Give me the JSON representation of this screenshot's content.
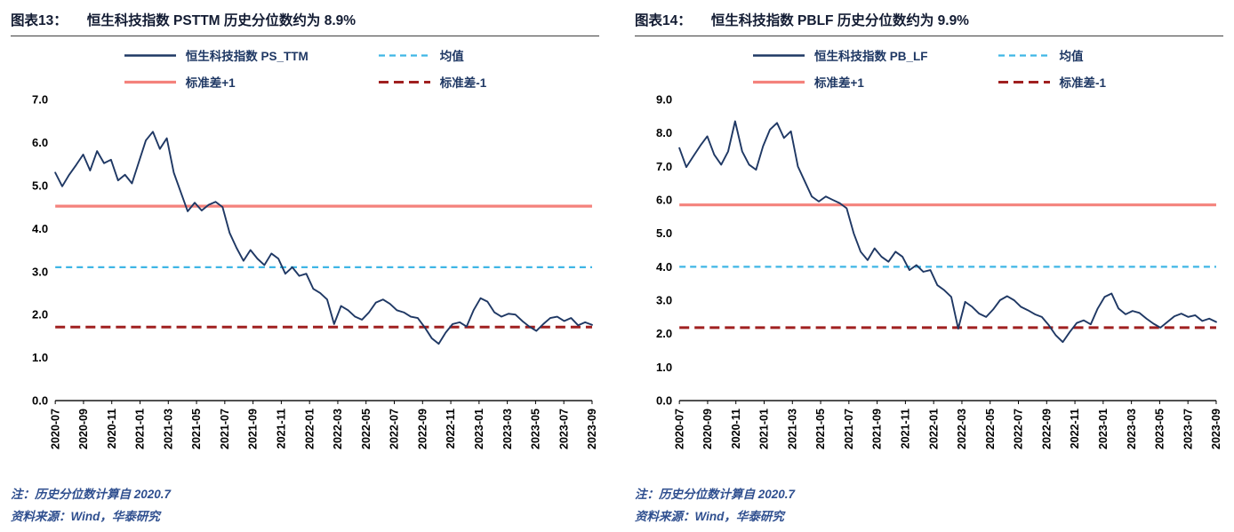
{
  "chart_data": [
    {
      "type": "line",
      "figure_label": "图表13：",
      "title": "恒生科技指数 PSTTM 历史分位数约为 8.9%",
      "ylim": [
        0,
        7
      ],
      "ystep": 1,
      "x_ticks": [
        "2020-07",
        "2020-09",
        "2020-11",
        "2021-01",
        "2021-03",
        "2021-05",
        "2021-07",
        "2021-09",
        "2021-11",
        "2022-01",
        "2022-03",
        "2022-05",
        "2022-07",
        "2022-09",
        "2022-11",
        "2023-01",
        "2023-03",
        "2023-05",
        "2023-07",
        "2023-09"
      ],
      "series": {
        "name": "恒生科技指数 PS_TTM",
        "color": "#1F3864",
        "values": [
          5.3,
          4.98,
          5.25,
          5.48,
          5.72,
          5.35,
          5.8,
          5.52,
          5.6,
          5.12,
          5.25,
          5.05,
          5.55,
          6.05,
          6.25,
          5.85,
          6.1,
          5.3,
          4.85,
          4.4,
          4.6,
          4.42,
          4.55,
          4.62,
          4.5,
          3.9,
          3.55,
          3.25,
          3.5,
          3.3,
          3.15,
          3.42,
          3.3,
          2.95,
          3.1,
          2.9,
          2.95,
          2.6,
          2.5,
          2.35,
          1.78,
          2.2,
          2.1,
          1.95,
          1.88,
          2.05,
          2.28,
          2.35,
          2.25,
          2.1,
          2.05,
          1.95,
          1.92,
          1.7,
          1.45,
          1.32,
          1.58,
          1.78,
          1.82,
          1.72,
          2.1,
          2.38,
          2.3,
          2.05,
          1.95,
          2.02,
          2.0,
          1.85,
          1.72,
          1.62,
          1.78,
          1.92,
          1.95,
          1.85,
          1.92,
          1.75,
          1.82,
          1.76
        ]
      },
      "ref_lines": [
        {
          "name": "均值",
          "value": 3.1,
          "color": "#3FB6E5",
          "dash": "dashed",
          "width": 2.2
        },
        {
          "name": "标准差+1",
          "value": 4.52,
          "color": "#F4827C",
          "dash": "solid",
          "width": 3.2
        },
        {
          "name": "标准差-1",
          "value": 1.71,
          "color": "#A02020",
          "dash": "longdash",
          "width": 3
        }
      ],
      "notes": [
        "注：历史分位数计算自 2020.7",
        "资料来源：Wind，华泰研究"
      ]
    },
    {
      "type": "line",
      "figure_label": "图表14：",
      "title": "恒生科技指数 PBLF 历史分位数约为 9.9%",
      "ylim": [
        0,
        9
      ],
      "ystep": 1,
      "x_ticks": [
        "2020-07",
        "2020-09",
        "2020-11",
        "2021-01",
        "2021-03",
        "2021-05",
        "2021-07",
        "2021-09",
        "2021-11",
        "2022-01",
        "2022-03",
        "2022-05",
        "2022-07",
        "2022-09",
        "2022-11",
        "2023-01",
        "2023-03",
        "2023-05",
        "2023-07",
        "2023-09"
      ],
      "series": {
        "name": "恒生科技指数 PB_LF",
        "color": "#1F3864",
        "values": [
          7.55,
          6.98,
          7.3,
          7.62,
          7.9,
          7.35,
          7.05,
          7.45,
          8.35,
          7.45,
          7.05,
          6.9,
          7.6,
          8.1,
          8.3,
          7.85,
          8.05,
          7.0,
          6.55,
          6.1,
          5.95,
          6.1,
          6.0,
          5.9,
          5.75,
          5.0,
          4.45,
          4.2,
          4.55,
          4.3,
          4.15,
          4.45,
          4.3,
          3.9,
          4.05,
          3.85,
          3.9,
          3.45,
          3.3,
          3.1,
          2.15,
          2.95,
          2.8,
          2.6,
          2.5,
          2.72,
          3.0,
          3.12,
          3.0,
          2.8,
          2.7,
          2.58,
          2.5,
          2.25,
          1.95,
          1.75,
          2.05,
          2.32,
          2.4,
          2.28,
          2.75,
          3.1,
          3.2,
          2.75,
          2.58,
          2.68,
          2.62,
          2.45,
          2.3,
          2.18,
          2.35,
          2.52,
          2.6,
          2.5,
          2.55,
          2.38,
          2.45,
          2.35
        ]
      },
      "ref_lines": [
        {
          "name": "均值",
          "value": 4.0,
          "color": "#3FB6E5",
          "dash": "dashed",
          "width": 2.2
        },
        {
          "name": "标准差+1",
          "value": 5.85,
          "color": "#F4827C",
          "dash": "solid",
          "width": 3.2
        },
        {
          "name": "标准差-1",
          "value": 2.18,
          "color": "#A02020",
          "dash": "longdash",
          "width": 3
        }
      ],
      "notes": [
        "注：历史分位数计算自 2020.7",
        "资料来源：Wind，华泰研究"
      ]
    }
  ]
}
